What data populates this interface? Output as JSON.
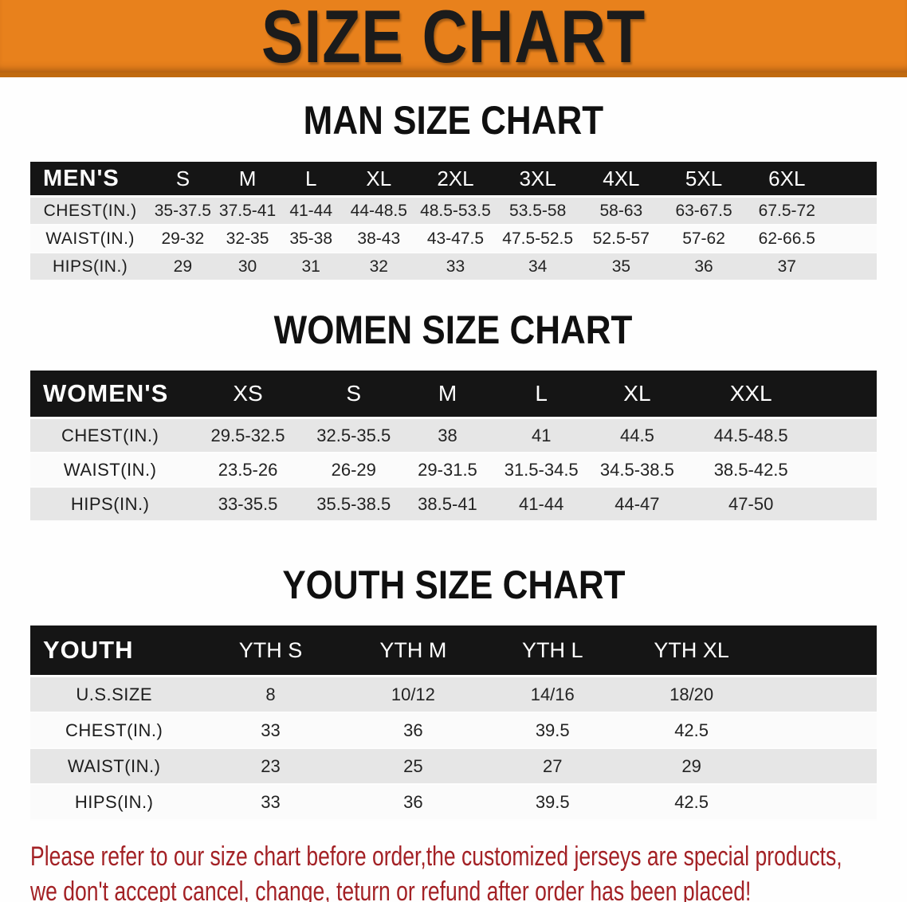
{
  "banner": {
    "title": "SIZE CHART",
    "bg_color": "#E8811C",
    "title_color": "#1B1B1B"
  },
  "sections": [
    {
      "heading": "MAN SIZE CHART",
      "table": {
        "label": "MEN'S",
        "columns": [
          "S",
          "M",
          "L",
          "XL",
          "2XL",
          "3XL",
          "4XL",
          "5XL",
          "6XL"
        ],
        "rows": [
          {
            "label": "CHEST(IN.)",
            "values": [
              "35-37.5",
              "37.5-41",
              "41-44",
              "44-48.5",
              "48.5-53.5",
              "53.5-58",
              "58-63",
              "63-67.5",
              "67.5-72"
            ]
          },
          {
            "label": "WAIST(IN.)",
            "values": [
              "29-32",
              "32-35",
              "35-38",
              "38-43",
              "43-47.5",
              "47.5-52.5",
              "52.5-57",
              "57-62",
              "62-66.5"
            ]
          },
          {
            "label": "HIPS(IN.)",
            "values": [
              "29",
              "30",
              "31",
              "32",
              "33",
              "34",
              "35",
              "36",
              "37"
            ]
          }
        ]
      }
    },
    {
      "heading": "WOMEN SIZE CHART",
      "table": {
        "label": "WOMEN'S",
        "columns": [
          "XS",
          "S",
          "M",
          "L",
          "XL",
          "XXL"
        ],
        "rows": [
          {
            "label": "CHEST(IN.)",
            "values": [
              "29.5-32.5",
              "32.5-35.5",
              "38",
              "41",
              "44.5",
              "44.5-48.5"
            ]
          },
          {
            "label": "WAIST(IN.)",
            "values": [
              "23.5-26",
              "26-29",
              "29-31.5",
              "31.5-34.5",
              "34.5-38.5",
              "38.5-42.5"
            ]
          },
          {
            "label": "HIPS(IN.)",
            "values": [
              "33-35.5",
              "35.5-38.5",
              "38.5-41",
              "41-44",
              "44-47",
              "47-50"
            ]
          }
        ]
      }
    },
    {
      "heading": "YOUTH SIZE CHART",
      "table": {
        "label": "YOUTH",
        "columns": [
          "YTH S",
          "YTH M",
          "YTH L",
          "YTH XL"
        ],
        "rows": [
          {
            "label": "U.S.SIZE",
            "values": [
              "8",
              "10/12",
              "14/16",
              "18/20"
            ]
          },
          {
            "label": "CHEST(IN.)",
            "values": [
              "33",
              "36",
              "39.5",
              "42.5"
            ]
          },
          {
            "label": "WAIST(IN.)",
            "values": [
              "23",
              "25",
              "27",
              "29"
            ]
          },
          {
            "label": "HIPS(IN.)",
            "values": [
              "33",
              "36",
              "39.5",
              "42.5"
            ]
          }
        ]
      }
    }
  ],
  "disclaimer": {
    "lines": [
      "Please refer to our size chart before order,the customized jerseys are special products,",
      "we don't accept cancel, change, teturn or refund after order has been placed!"
    ],
    "color": "#A32125"
  },
  "colors": {
    "header_bar": "#151515",
    "row_alt": "#e6e6e6",
    "row_plain": "#fbfbfb"
  }
}
